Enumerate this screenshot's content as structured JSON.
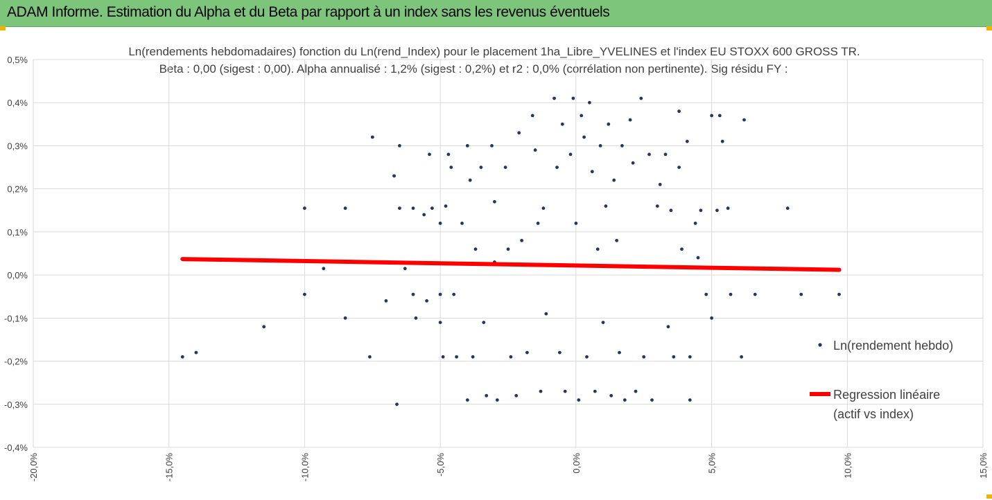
{
  "header": {
    "title": "ADAM Informe. Estimation du Alpha et du Beta par rapport à un index sans les revenus éventuels"
  },
  "colors": {
    "banner": "#7cc57a",
    "points": "#1f3864",
    "regression": "#ff0000",
    "corner_marks": "#f0b400"
  },
  "chart_data": {
    "type": "scatter",
    "title": "Ln(rendements hebdomadaires) fonction du Ln(rend_Index) pour le placement 1ha_Libre_YVELINES et l'index EU STOXX 600 GROSS TR.",
    "subtitle": "Beta : 0,00 (sigest : 0,00). Alpha annualisé : 1,2% (sigest : 0,2%) et r2 : 0,0% (corrélation non pertinente). Sig résidu FY :",
    "xlim": [
      -0.2,
      0.15
    ],
    "ylim": [
      -0.004,
      0.005
    ],
    "x_ticks": [
      "-20,0%",
      "-15,0%",
      "-10,0%",
      "-5,0%",
      "0,0%",
      "5,0%",
      "10,0%",
      "15,0%"
    ],
    "x_tick_values": [
      -0.2,
      -0.15,
      -0.1,
      -0.05,
      0.0,
      0.05,
      0.1,
      0.15
    ],
    "y_ticks": [
      "0,5%",
      "0,4%",
      "0,3%",
      "0,2%",
      "0,1%",
      "0,0%",
      "-0,1%",
      "-0,2%",
      "-0,3%",
      "-0,4%"
    ],
    "y_tick_values": [
      0.005,
      0.004,
      0.003,
      0.002,
      0.001,
      0.0,
      -0.001,
      -0.002,
      -0.003,
      -0.004
    ],
    "grid": "horizontal and vertical",
    "legend_position": "right",
    "series": [
      {
        "name": "Ln(rendement hebdo)",
        "kind": "scatter",
        "points": [
          [
            -0.145,
            -0.0019
          ],
          [
            -0.14,
            -0.0018
          ],
          [
            -0.115,
            -0.0012
          ],
          [
            -0.1,
            0.00155
          ],
          [
            -0.1,
            -0.00045
          ],
          [
            -0.093,
            0.00015
          ],
          [
            -0.085,
            0.00155
          ],
          [
            -0.085,
            -0.001
          ],
          [
            -0.075,
            0.0032
          ],
          [
            -0.076,
            -0.0019
          ],
          [
            -0.07,
            -0.0006
          ],
          [
            -0.067,
            0.0023
          ],
          [
            -0.065,
            0.003
          ],
          [
            -0.065,
            0.00155
          ],
          [
            -0.063,
            0.00015
          ],
          [
            -0.06,
            0.00155
          ],
          [
            -0.06,
            -0.00045
          ],
          [
            -0.059,
            -0.001
          ],
          [
            -0.066,
            -0.003
          ],
          [
            -0.056,
            0.0014
          ],
          [
            -0.055,
            -0.0006
          ],
          [
            -0.054,
            0.0028
          ],
          [
            -0.053,
            0.00155
          ],
          [
            -0.05,
            0.0012
          ],
          [
            -0.05,
            -0.00045
          ],
          [
            -0.05,
            -0.0011
          ],
          [
            -0.049,
            -0.0019
          ],
          [
            -0.048,
            0.0016
          ],
          [
            -0.047,
            0.0028
          ],
          [
            -0.046,
            0.0025
          ],
          [
            -0.045,
            -0.00045
          ],
          [
            -0.044,
            -0.0019
          ],
          [
            -0.042,
            0.0012
          ],
          [
            -0.04,
            0.003
          ],
          [
            -0.04,
            -0.0029
          ],
          [
            -0.039,
            0.0022
          ],
          [
            -0.038,
            -0.0019
          ],
          [
            -0.037,
            0.0006
          ],
          [
            -0.035,
            0.0025
          ],
          [
            -0.034,
            -0.0011
          ],
          [
            -0.033,
            -0.0028
          ],
          [
            -0.031,
            0.003
          ],
          [
            -0.03,
            0.0017
          ],
          [
            -0.03,
            0.0003
          ],
          [
            -0.029,
            -0.0029
          ],
          [
            -0.026,
            0.0025
          ],
          [
            -0.025,
            0.0006
          ],
          [
            -0.024,
            -0.0019
          ],
          [
            -0.022,
            -0.0028
          ],
          [
            -0.021,
            0.0033
          ],
          [
            -0.02,
            0.0008
          ],
          [
            -0.018,
            -0.0018
          ],
          [
            -0.016,
            0.0037
          ],
          [
            -0.015,
            0.0029
          ],
          [
            -0.014,
            0.0012
          ],
          [
            -0.013,
            -0.0027
          ],
          [
            -0.012,
            0.00155
          ],
          [
            -0.011,
            -0.0009
          ],
          [
            -0.008,
            0.0041
          ],
          [
            -0.007,
            0.0025
          ],
          [
            -0.006,
            -0.0018
          ],
          [
            -0.005,
            0.0035
          ],
          [
            -0.004,
            -0.0027
          ],
          [
            -0.002,
            0.0028
          ],
          [
            -0.001,
            0.0041
          ],
          [
            0.0,
            0.0012
          ],
          [
            0.001,
            -0.0029
          ],
          [
            0.002,
            0.0037
          ],
          [
            0.003,
            0.0032
          ],
          [
            0.004,
            -0.0019
          ],
          [
            0.005,
            0.004
          ],
          [
            0.006,
            0.0024
          ],
          [
            0.007,
            -0.0027
          ],
          [
            0.008,
            0.0006
          ],
          [
            0.009,
            0.003
          ],
          [
            0.01,
            -0.0011
          ],
          [
            0.011,
            0.0016
          ],
          [
            0.012,
            0.0035
          ],
          [
            0.013,
            -0.0028
          ],
          [
            0.014,
            0.0022
          ],
          [
            0.015,
            0.0008
          ],
          [
            0.016,
            -0.0018
          ],
          [
            0.017,
            0.003
          ],
          [
            0.018,
            -0.0029
          ],
          [
            0.02,
            0.0036
          ],
          [
            0.021,
            0.0026
          ],
          [
            0.022,
            -0.0027
          ],
          [
            0.024,
            0.0041
          ],
          [
            0.025,
            -0.0019
          ],
          [
            0.027,
            0.0028
          ],
          [
            0.028,
            -0.0029
          ],
          [
            0.03,
            0.0016
          ],
          [
            0.031,
            0.0021
          ],
          [
            0.033,
            0.0028
          ],
          [
            0.034,
            -0.0012
          ],
          [
            0.035,
            0.0015
          ],
          [
            0.036,
            -0.0019
          ],
          [
            0.038,
            0.0038
          ],
          [
            0.038,
            0.0025
          ],
          [
            0.039,
            0.0006
          ],
          [
            0.041,
            0.0031
          ],
          [
            0.042,
            -0.0019
          ],
          [
            0.042,
            -0.0029
          ],
          [
            0.044,
            0.0012
          ],
          [
            0.045,
            0.0004
          ],
          [
            0.046,
            0.0015
          ],
          [
            0.048,
            -0.00045
          ],
          [
            0.05,
            0.0037
          ],
          [
            0.05,
            -0.001
          ],
          [
            0.052,
            0.0015
          ],
          [
            0.053,
            0.0037
          ],
          [
            0.054,
            0.0031
          ],
          [
            0.056,
            0.00155
          ],
          [
            0.057,
            -0.00045
          ],
          [
            0.062,
            0.0036
          ],
          [
            0.061,
            -0.0019
          ],
          [
            0.066,
            -0.00045
          ],
          [
            0.071,
            0.00015
          ],
          [
            0.078,
            0.00155
          ],
          [
            0.083,
            -0.00045
          ],
          [
            0.097,
            -0.00045
          ]
        ]
      },
      {
        "name": "Regression linéaire (actif vs index)",
        "kind": "line",
        "points": [
          [
            -0.145,
            0.00037
          ],
          [
            0.097,
            0.00012
          ]
        ]
      }
    ],
    "legend": [
      {
        "label": "Ln(rendement hebdo)"
      },
      {
        "label_line1": "Regression linéaire",
        "label_line2": "(actif vs index)"
      }
    ]
  }
}
